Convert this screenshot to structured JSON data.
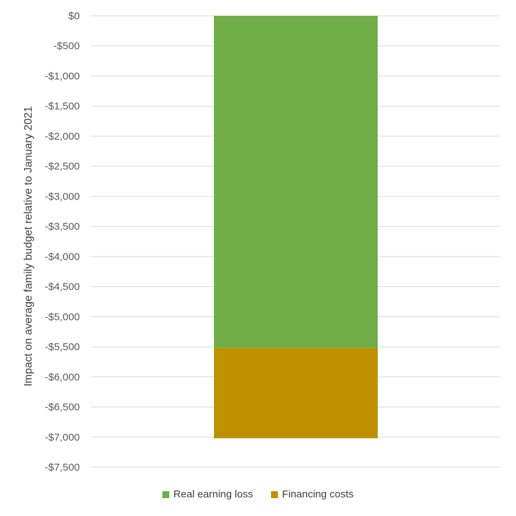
{
  "chart_data": {
    "type": "bar",
    "stacked": true,
    "categories": [
      ""
    ],
    "series": [
      {
        "name": "Real earning loss",
        "values": [
          -5520
        ],
        "color": "#70ad47"
      },
      {
        "name": "Financing costs",
        "values": [
          -1500
        ],
        "color": "#bf9000"
      }
    ],
    "ylabel": "Impact on average family budget relative to January 2021",
    "ylim": [
      -7500,
      0
    ],
    "yticks": [
      0,
      -500,
      -1000,
      -1500,
      -2000,
      -2500,
      -3000,
      -3500,
      -4000,
      -4500,
      -5000,
      -5500,
      -6000,
      -6500,
      -7000,
      -7500
    ],
    "ytick_labels": [
      "$0",
      "-$500",
      "-$1,000",
      "-$1,500",
      "-$2,000",
      "-$2,500",
      "-$3,000",
      "-$3,500",
      "-$4,000",
      "-$4,500",
      "-$5,000",
      "-$5,500",
      "-$6,000",
      "-$6,500",
      "-$7,000",
      "-$7,500"
    ],
    "grid": true,
    "legend_position": "bottom"
  }
}
